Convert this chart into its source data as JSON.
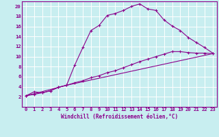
{
  "xlabel": "Windchill (Refroidissement éolien,°C)",
  "bg_color": "#c8eef0",
  "line_color": "#8b008b",
  "xlim": [
    -0.5,
    23.5
  ],
  "ylim": [
    0,
    21
  ],
  "xticks": [
    0,
    1,
    2,
    3,
    4,
    5,
    6,
    7,
    8,
    9,
    10,
    11,
    12,
    13,
    14,
    15,
    16,
    17,
    18,
    19,
    20,
    21,
    22,
    23
  ],
  "yticks": [
    2,
    4,
    6,
    8,
    10,
    12,
    14,
    16,
    18,
    20
  ],
  "curve1_x": [
    0,
    1,
    2,
    3,
    4,
    5,
    6,
    7,
    8,
    9,
    10,
    11,
    12,
    13,
    14,
    15,
    16,
    17,
    18,
    19,
    20,
    21,
    22,
    23
  ],
  "curve1_y": [
    2.2,
    3.0,
    2.8,
    3.2,
    3.9,
    4.3,
    8.3,
    11.8,
    15.2,
    16.2,
    18.2,
    18.6,
    19.2,
    20.0,
    20.5,
    19.5,
    19.2,
    17.3,
    16.1,
    15.2,
    13.8,
    12.8,
    11.8,
    10.7
  ],
  "curve2_x": [
    0,
    1,
    2,
    3,
    4,
    5,
    6,
    7,
    8,
    9,
    10,
    11,
    12,
    13,
    14,
    15,
    16,
    17,
    18,
    19,
    20,
    21,
    22,
    23
  ],
  "curve2_y": [
    2.2,
    2.5,
    2.8,
    3.2,
    3.9,
    4.3,
    4.8,
    5.2,
    5.8,
    6.2,
    6.8,
    7.2,
    7.8,
    8.4,
    9.0,
    9.5,
    10.0,
    10.5,
    11.0,
    11.0,
    10.8,
    10.7,
    10.7,
    10.6
  ],
  "curve3_x": [
    0,
    5,
    23
  ],
  "curve3_y": [
    2.2,
    4.3,
    10.6
  ],
  "tick_fontsize": 5.2,
  "xlabel_fontsize": 5.5
}
